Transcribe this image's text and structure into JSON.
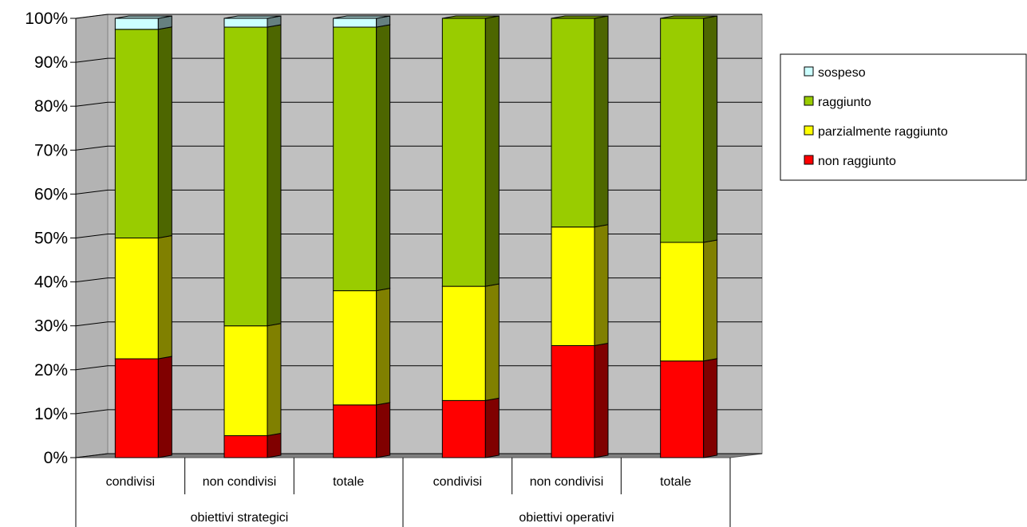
{
  "chart_data": {
    "type": "bar",
    "stacked": true,
    "percent_stacked": true,
    "three_d": true,
    "groups": [
      {
        "label": "obiettivi strategici",
        "categories": [
          "condivisi",
          "non condivisi",
          "totale"
        ]
      },
      {
        "label": "obiettivi operativi",
        "categories": [
          "condivisi",
          "non condivisi",
          "totale"
        ]
      }
    ],
    "categories": [
      "condivisi",
      "non condivisi",
      "totale",
      "condivisi",
      "non condivisi",
      "totale"
    ],
    "series": [
      {
        "name": "non raggiunto",
        "color": "#ff0000",
        "values": [
          22.5,
          5,
          12,
          13,
          25.5,
          22
        ]
      },
      {
        "name": "parzialmente raggiunto",
        "color": "#ffff00",
        "values": [
          27.5,
          25,
          26,
          26,
          27,
          27
        ]
      },
      {
        "name": "raggiunto",
        "color": "#99cc00",
        "values": [
          47.5,
          68,
          60,
          61,
          47.5,
          51
        ]
      },
      {
        "name": "sospeso",
        "color": "#ccffff",
        "values": [
          2.5,
          2,
          2,
          0,
          0,
          0
        ]
      }
    ],
    "y_ticks": [
      "0%",
      "10%",
      "20%",
      "30%",
      "40%",
      "50%",
      "60%",
      "70%",
      "80%",
      "90%",
      "100%"
    ],
    "ylim": [
      0,
      100
    ],
    "grid": true,
    "legend_position": "right",
    "legend_order": [
      "sospeso",
      "raggiunto",
      "parzialmente raggiunto",
      "non raggiunto"
    ],
    "wall_color": "#c0c0c0",
    "floor_color": "#808080"
  }
}
